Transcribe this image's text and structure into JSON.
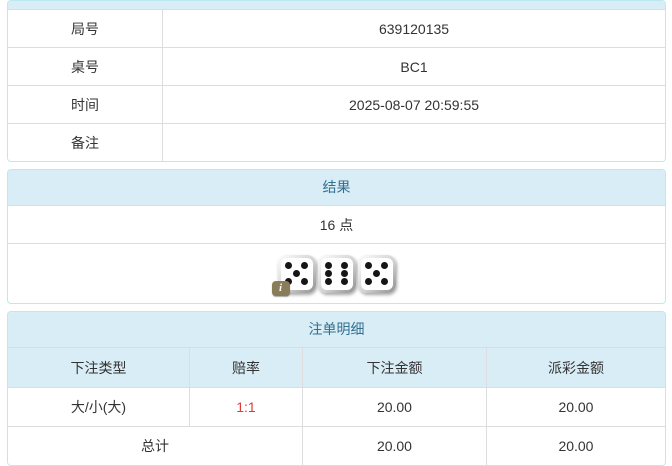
{
  "colors": {
    "heading_bg": "#d9edf7",
    "heading_text": "#31708f",
    "panel_border": "#bce8f1",
    "row_border": "#dddddd",
    "body_text": "#333333",
    "odds_red": "#e03b3b",
    "badge_olive": "#8a7c58"
  },
  "info_panel": {
    "rows": [
      {
        "label": "局号",
        "value": "639120135"
      },
      {
        "label": "桌号",
        "value": "BC1"
      },
      {
        "label": "时间",
        "value": "2025-08-07 20:59:55"
      },
      {
        "label": "备注",
        "value": ""
      }
    ]
  },
  "result_panel": {
    "title": "结果",
    "points": "16 点",
    "dice": [
      5,
      6,
      5
    ],
    "info_badge": "i"
  },
  "bets_panel": {
    "title": "注单明细",
    "columns": [
      "下注类型",
      "赔率",
      "下注金额",
      "派彩金额"
    ],
    "rows": [
      {
        "type": "大/小(大)",
        "odds": "1:1",
        "bet": "20.00",
        "payout": "20.00"
      }
    ],
    "total": {
      "label": "总计",
      "bet": "20.00",
      "payout": "20.00"
    }
  }
}
